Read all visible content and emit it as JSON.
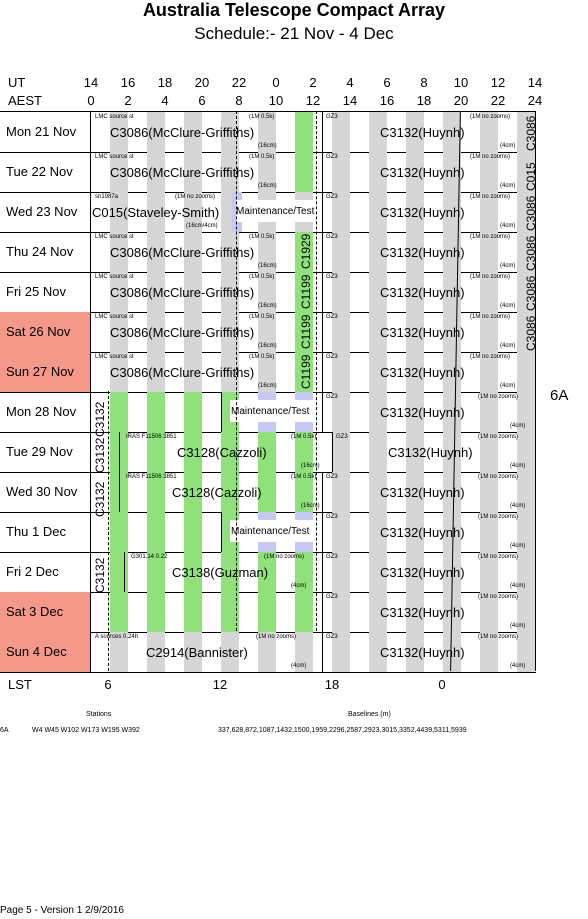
{
  "title": "Australia Telescope Compact Array",
  "subtitle": "Schedule:- 21 Nov - 4  Dec",
  "ut_label": "UT",
  "aest_label": "AEST",
  "lst_label": "LST",
  "ut_ticks": [
    "14",
    "16",
    "18",
    "20",
    "22",
    "0",
    "2",
    "4",
    "6",
    "8",
    "10",
    "12",
    "14"
  ],
  "aest_ticks": [
    "0",
    "2",
    "4",
    "6",
    "8",
    "10",
    "12",
    "14",
    "16",
    "18",
    "20",
    "22",
    "24"
  ],
  "lst_ticks": [
    "6",
    "12",
    "18",
    "0"
  ],
  "config": "6A",
  "days": [
    {
      "label": "Mon  21 Nov",
      "weekend": false
    },
    {
      "label": "Tue   22 Nov",
      "weekend": false
    },
    {
      "label": "Wed  23 Nov",
      "weekend": false
    },
    {
      "label": "Thu   24 Nov",
      "weekend": false
    },
    {
      "label": "Fri    25 Nov",
      "weekend": false
    },
    {
      "label": "Sat   26 Nov",
      "weekend": true
    },
    {
      "label": "Sun  27 Nov",
      "weekend": true
    },
    {
      "label": "Mon  28 Nov",
      "weekend": false
    },
    {
      "label": "Tue   29 Nov",
      "weekend": false
    },
    {
      "label": "Wed  30 Nov",
      "weekend": false
    },
    {
      "label": "Thu    1  Dec",
      "weekend": false
    },
    {
      "label": "Fri     2  Dec",
      "weekend": false
    },
    {
      "label": "Sat    3  Dec",
      "weekend": true
    },
    {
      "label": "Sun   4  Dec",
      "weekend": true
    }
  ],
  "projects": {
    "c3086": "C3086(McClure-Griffiths)",
    "c3132": "C3132(Huynh)",
    "c015": "C015(Staveley-Smith)",
    "maint": "Maintenance/Test",
    "c3128": "C3128(Cazzoli)",
    "c3138": "C3138(Guzman)",
    "c2914": "C2914(Bannister)",
    "c1929": "C1929",
    "c1199": "C1199",
    "c3132v": "C3132",
    "c3086v": "C3086",
    "c015v": "C015"
  },
  "notes": {
    "lmc": "LMC source  st",
    "mhz1": "(1M 0.5k)",
    "cm16": "(16cm)",
    "gz3": "GZ3",
    "nozoom": "(1M no zooms)",
    "cm4": "(4cm)",
    "sn1987a": "sn1987a",
    "cm16_4": "(16cm/4cm)",
    "iras": "IRAS F11506 3851",
    "g301": "G301.14 0.22",
    "a_sources": "A   sources 0.24h"
  },
  "footer": {
    "stations_label": "Stations",
    "baselines_label": "Baselines (m)",
    "config": "6A",
    "stations": "W4  W45  W102  W173  W195  W392",
    "baselines": "337,628,872,1087,1432,1500,1959,2296,2587,2923,3015,3352,4439,5311,5939",
    "page": "Page 5 - Version 1  2/9/2016"
  }
}
